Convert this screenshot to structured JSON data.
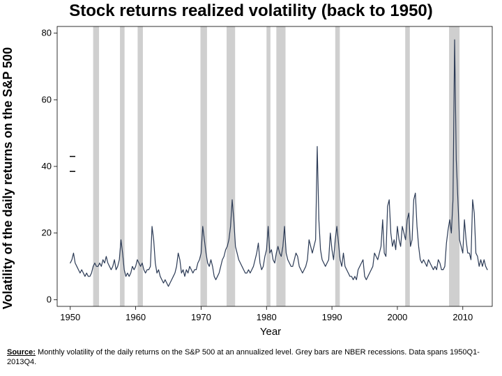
{
  "title": "Stock returns realized volatility (back to 1950)",
  "ylabel": "Volatility of the daily returns on the S&P 500",
  "xlabel": "Year",
  "footnote_label": "Source:",
  "footnote_text": " Monthly volatility of the daily returns on the S&P 500 at an annualized level. Grey bars are NBER recessions. Data spans 1950Q1-2013Q4.",
  "chart": {
    "type": "line",
    "background_color": "#ffffff",
    "plot_border_color": "#000000",
    "plot_border_width": 0.8,
    "line_color": "#2b3a55",
    "line_width": 1.2,
    "recession_color": "#cfcfcf",
    "axis_text_color": "#000000",
    "tick_fontsize": 13,
    "xlabel_fontsize": 15,
    "small_dash_color": "#000000",
    "xlim": [
      1948,
      2014.5
    ],
    "ylim": [
      -2,
      82
    ],
    "yticks": [
      0,
      20,
      40,
      60,
      80
    ],
    "xticks": [
      1950,
      1960,
      1970,
      1980,
      1990,
      2000,
      2010
    ],
    "recessions": [
      [
        1953.5,
        1954.4
      ],
      [
        1957.6,
        1958.3
      ],
      [
        1960.3,
        1961.1
      ],
      [
        1969.9,
        1970.9
      ],
      [
        1973.9,
        1975.2
      ],
      [
        1980.0,
        1980.6
      ],
      [
        1981.5,
        1982.9
      ],
      [
        1990.5,
        1991.2
      ],
      [
        2001.2,
        2001.9
      ],
      [
        2007.9,
        2009.5
      ]
    ],
    "series_x": [
      1950.0,
      1950.25,
      1950.5,
      1950.75,
      1951.0,
      1951.25,
      1951.5,
      1951.75,
      1952.0,
      1952.25,
      1952.5,
      1952.75,
      1953.0,
      1953.25,
      1953.5,
      1953.75,
      1954.0,
      1954.25,
      1954.5,
      1954.75,
      1955.0,
      1955.25,
      1955.5,
      1955.75,
      1956.0,
      1956.25,
      1956.5,
      1956.75,
      1957.0,
      1957.25,
      1957.5,
      1957.75,
      1958.0,
      1958.25,
      1958.5,
      1958.75,
      1959.0,
      1959.25,
      1959.5,
      1959.75,
      1960.0,
      1960.25,
      1960.5,
      1960.75,
      1961.0,
      1961.25,
      1961.5,
      1961.75,
      1962.0,
      1962.25,
      1962.5,
      1962.75,
      1963.0,
      1963.25,
      1963.5,
      1963.75,
      1964.0,
      1964.25,
      1964.5,
      1964.75,
      1965.0,
      1965.25,
      1965.5,
      1965.75,
      1966.0,
      1966.25,
      1966.5,
      1966.75,
      1967.0,
      1967.25,
      1967.5,
      1967.75,
      1968.0,
      1968.25,
      1968.5,
      1968.75,
      1969.0,
      1969.25,
      1969.5,
      1969.75,
      1970.0,
      1970.25,
      1970.5,
      1970.75,
      1971.0,
      1971.25,
      1971.5,
      1971.75,
      1972.0,
      1972.25,
      1972.5,
      1972.75,
      1973.0,
      1973.25,
      1973.5,
      1973.75,
      1974.0,
      1974.25,
      1974.5,
      1974.75,
      1975.0,
      1975.25,
      1975.5,
      1975.75,
      1976.0,
      1976.25,
      1976.5,
      1976.75,
      1977.0,
      1977.25,
      1977.5,
      1977.75,
      1978.0,
      1978.25,
      1978.5,
      1978.75,
      1979.0,
      1979.25,
      1979.5,
      1979.75,
      1980.0,
      1980.25,
      1980.5,
      1980.75,
      1981.0,
      1981.25,
      1981.5,
      1981.75,
      1982.0,
      1982.25,
      1982.5,
      1982.75,
      1983.0,
      1983.25,
      1983.5,
      1983.75,
      1984.0,
      1984.25,
      1984.5,
      1984.75,
      1985.0,
      1985.25,
      1985.5,
      1985.75,
      1986.0,
      1986.25,
      1986.5,
      1986.75,
      1987.0,
      1987.25,
      1987.5,
      1987.75,
      1988.0,
      1988.25,
      1988.5,
      1988.75,
      1989.0,
      1989.25,
      1989.5,
      1989.75,
      1990.0,
      1990.25,
      1990.5,
      1990.75,
      1991.0,
      1991.25,
      1991.5,
      1991.75,
      1992.0,
      1992.25,
      1992.5,
      1992.75,
      1993.0,
      1993.25,
      1993.5,
      1993.75,
      1994.0,
      1994.25,
      1994.5,
      1994.75,
      1995.0,
      1995.25,
      1995.5,
      1995.75,
      1996.0,
      1996.25,
      1996.5,
      1996.75,
      1997.0,
      1997.25,
      1997.5,
      1997.75,
      1998.0,
      1998.25,
      1998.5,
      1998.75,
      1999.0,
      1999.25,
      1999.5,
      1999.75,
      2000.0,
      2000.25,
      2000.5,
      2000.75,
      2001.0,
      2001.25,
      2001.5,
      2001.75,
      2002.0,
      2002.25,
      2002.5,
      2002.75,
      2003.0,
      2003.25,
      2003.5,
      2003.75,
      2004.0,
      2004.25,
      2004.5,
      2004.75,
      2005.0,
      2005.25,
      2005.5,
      2005.75,
      2006.0,
      2006.25,
      2006.5,
      2006.75,
      2007.0,
      2007.25,
      2007.5,
      2007.75,
      2008.0,
      2008.25,
      2008.5,
      2008.75,
      2009.0,
      2009.25,
      2009.5,
      2009.75,
      2010.0,
      2010.25,
      2010.5,
      2010.75,
      2011.0,
      2011.25,
      2011.5,
      2011.75,
      2012.0,
      2012.25,
      2012.5,
      2012.75,
      2013.0,
      2013.25,
      2013.5,
      2013.75
    ],
    "series_y": [
      11,
      12,
      14,
      11,
      10,
      9,
      8,
      9,
      8,
      7,
      8,
      7,
      7,
      8,
      10,
      11,
      10,
      10,
      11,
      10,
      12,
      11,
      13,
      11,
      10,
      9,
      10,
      12,
      9,
      10,
      12,
      18,
      14,
      9,
      7,
      8,
      7,
      8,
      10,
      9,
      10,
      12,
      11,
      10,
      11,
      9,
      8,
      9,
      9,
      10,
      22,
      18,
      11,
      8,
      9,
      7,
      6,
      5,
      6,
      5,
      4,
      5,
      6,
      7,
      8,
      10,
      14,
      12,
      8,
      9,
      7,
      9,
      8,
      10,
      9,
      8,
      9,
      9,
      11,
      12,
      14,
      22,
      18,
      14,
      11,
      10,
      12,
      10,
      7,
      6,
      7,
      8,
      10,
      12,
      13,
      15,
      16,
      18,
      22,
      30,
      24,
      16,
      14,
      12,
      11,
      10,
      9,
      8,
      8,
      9,
      8,
      9,
      10,
      12,
      14,
      17,
      11,
      9,
      10,
      13,
      15,
      22,
      14,
      15,
      12,
      11,
      14,
      16,
      14,
      13,
      16,
      22,
      14,
      12,
      11,
      10,
      10,
      12,
      14,
      13,
      10,
      9,
      8,
      9,
      10,
      12,
      18,
      16,
      14,
      16,
      18,
      46,
      24,
      15,
      12,
      11,
      10,
      11,
      12,
      20,
      15,
      12,
      18,
      22,
      17,
      12,
      10,
      14,
      10,
      9,
      8,
      7,
      7,
      6,
      7,
      6,
      9,
      10,
      11,
      12,
      7,
      6,
      7,
      8,
      9,
      10,
      14,
      13,
      12,
      14,
      16,
      24,
      14,
      13,
      28,
      30,
      20,
      16,
      18,
      15,
      22,
      18,
      16,
      22,
      20,
      18,
      24,
      26,
      16,
      18,
      30,
      32,
      22,
      16,
      12,
      11,
      12,
      11,
      10,
      12,
      11,
      10,
      9,
      10,
      9,
      12,
      11,
      9,
      9,
      10,
      17,
      21,
      24,
      20,
      30,
      78,
      42,
      30,
      18,
      16,
      14,
      24,
      18,
      14,
      14,
      12,
      30,
      26,
      14,
      13,
      10,
      12,
      10,
      12,
      10,
      9
    ]
  }
}
